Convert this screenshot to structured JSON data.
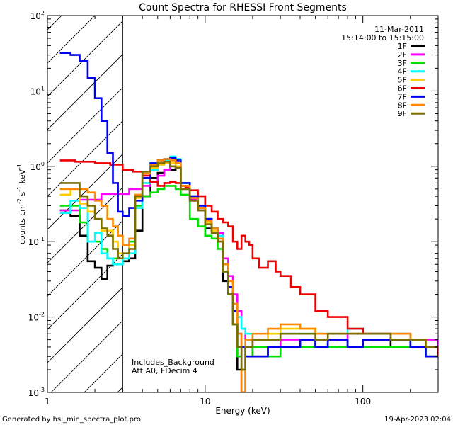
{
  "chart_data": {
    "type": "line",
    "title": "Count Spectra for RHESSI Front Segments",
    "date": "11-Mar-2011",
    "time_range": "15:14:00 to 15:15:00",
    "xlabel": "Energy (keV)",
    "ylabel": {
      "base": "counts cm",
      "exp1": "-2",
      "mid": " s",
      "exp2": "-1",
      "mid2": " keV",
      "exp3": "-1"
    },
    "xscale": "log",
    "yscale": "log",
    "xlim": [
      1,
      300
    ],
    "ylim": [
      0.001,
      100
    ],
    "x_ticks": [
      {
        "value": 1,
        "label": "1"
      },
      {
        "value": 10,
        "label": "10"
      },
      {
        "value": 100,
        "label": "100"
      }
    ],
    "y_ticks": [
      {
        "value": 0.001,
        "base": "10",
        "exp": "-3"
      },
      {
        "value": 0.01,
        "base": "10",
        "exp": "-2"
      },
      {
        "value": 0.1,
        "base": "10",
        "exp": "-1"
      },
      {
        "value": 1,
        "base": "10",
        "exp": "0"
      },
      {
        "value": 10,
        "base": "10",
        "exp": "1"
      },
      {
        "value": 100,
        "base": "10",
        "exp": "2"
      }
    ],
    "hatched_region": [
      1,
      3
    ],
    "annotations": [
      "Includes_Background",
      "Att A0, FDecim 4"
    ],
    "legend_position": "top-right",
    "series": [
      {
        "name": "1F",
        "color": "#000000",
        "x": [
          1.2,
          1.4,
          1.6,
          1.8,
          2.0,
          2.2,
          2.4,
          2.6,
          2.8,
          3.0,
          3.3,
          3.6,
          4.0,
          4.5,
          5.0,
          5.5,
          6.0,
          6.5,
          7.0,
          8.0,
          9.0,
          10,
          11,
          12,
          13,
          14,
          15,
          16,
          17,
          18,
          20,
          25,
          30,
          40,
          50,
          60,
          80,
          100,
          150,
          200,
          250,
          300
        ],
        "y": [
          0.26,
          0.22,
          0.12,
          0.055,
          0.045,
          0.032,
          0.048,
          0.05,
          0.05,
          0.055,
          0.06,
          0.14,
          0.4,
          0.7,
          0.82,
          0.88,
          0.9,
          0.95,
          0.5,
          0.35,
          0.26,
          0.15,
          0.14,
          0.1,
          0.03,
          0.02,
          0.008,
          0.002,
          0.001,
          0.004,
          0.003,
          0.004,
          0.004,
          0.005,
          0.004,
          0.005,
          0.004,
          0.005,
          0.004,
          0.004,
          0.003,
          0.003
        ]
      },
      {
        "name": "2F",
        "color": "#ff00ff",
        "x": [
          1.2,
          1.4,
          1.6,
          1.8,
          2.0,
          2.2,
          2.4,
          2.6,
          2.8,
          3.0,
          3.3,
          3.6,
          4.0,
          4.5,
          5.0,
          5.5,
          6.0,
          6.5,
          7.0,
          8.0,
          9.0,
          10,
          11,
          12,
          13,
          14,
          15,
          16,
          17,
          18,
          20,
          25,
          30,
          40,
          50,
          60,
          80,
          100,
          150,
          200,
          250,
          300
        ],
        "y": [
          0.26,
          0.26,
          0.36,
          0.36,
          0.36,
          0.43,
          0.43,
          0.43,
          0.43,
          0.43,
          0.5,
          0.5,
          0.55,
          0.62,
          0.75,
          0.9,
          1.0,
          1.0,
          0.55,
          0.37,
          0.28,
          0.2,
          0.15,
          0.13,
          0.06,
          0.035,
          0.02,
          0.012,
          0.007,
          0.005,
          0.004,
          0.004,
          0.005,
          0.005,
          0.005,
          0.005,
          0.006,
          0.006,
          0.006,
          0.005,
          0.005,
          0.004
        ]
      },
      {
        "name": "3F",
        "color": "#00e000",
        "x": [
          1.2,
          1.4,
          1.6,
          1.8,
          2.0,
          2.2,
          2.4,
          2.6,
          2.8,
          3.0,
          3.3,
          3.6,
          4.0,
          4.5,
          5.0,
          5.5,
          6.0,
          6.5,
          7.0,
          8.0,
          9.0,
          10,
          11,
          12,
          13,
          14,
          15,
          16,
          17,
          18,
          20,
          25,
          30,
          40,
          50,
          60,
          80,
          100,
          150,
          200,
          250,
          300
        ],
        "y": [
          0.3,
          0.3,
          0.18,
          0.1,
          0.1,
          0.08,
          0.06,
          0.06,
          0.06,
          0.06,
          0.1,
          0.3,
          0.4,
          0.45,
          0.5,
          0.55,
          0.55,
          0.5,
          0.42,
          0.2,
          0.16,
          0.12,
          0.11,
          0.08,
          0.04,
          0.02,
          0.008,
          0.003,
          0.002,
          0.003,
          0.004,
          0.003,
          0.004,
          0.004,
          0.004,
          0.004,
          0.004,
          0.004,
          0.004,
          0.004,
          0.003,
          0.003
        ]
      },
      {
        "name": "4F",
        "color": "#00ffff",
        "x": [
          1.2,
          1.4,
          1.6,
          1.8,
          2.0,
          2.2,
          2.4,
          2.6,
          2.8,
          3.0,
          3.3,
          3.6,
          4.0,
          4.5,
          5.0,
          5.5,
          6.0,
          6.5,
          7.0,
          8.0,
          9.0,
          10,
          11,
          12,
          13,
          14,
          15,
          16,
          17,
          18,
          20,
          25,
          30,
          40,
          50,
          60,
          80,
          100,
          150,
          200,
          250,
          300
        ],
        "y": [
          0.24,
          0.35,
          0.28,
          0.1,
          0.13,
          0.07,
          0.06,
          0.05,
          0.05,
          0.06,
          0.07,
          0.28,
          0.6,
          0.9,
          1.05,
          1.2,
          1.35,
          1.25,
          0.6,
          0.4,
          0.3,
          0.2,
          0.15,
          0.12,
          0.05,
          0.025,
          0.015,
          0.01,
          0.007,
          0.006,
          0.005,
          0.005,
          0.006,
          0.006,
          0.006,
          0.006,
          0.007,
          0.006,
          0.006,
          0.005,
          0.004,
          0.004
        ]
      },
      {
        "name": "5F",
        "color": "#ffcc00",
        "x": [
          1.2,
          1.4,
          1.6,
          1.8,
          2.0,
          2.2,
          2.4,
          2.6,
          2.8,
          3.0,
          3.3,
          3.6,
          4.0,
          4.5,
          5.0,
          5.5,
          6.0,
          6.5,
          7.0,
          8.0,
          9.0,
          10,
          11,
          12,
          13,
          14,
          15,
          16,
          17,
          18,
          20,
          25,
          30,
          40,
          50,
          60,
          80,
          100,
          150,
          200,
          250,
          300
        ],
        "y": [
          0.42,
          0.5,
          0.32,
          0.25,
          0.2,
          0.14,
          0.14,
          0.1,
          0.07,
          0.07,
          0.09,
          0.38,
          0.7,
          0.95,
          1.05,
          1.1,
          1.1,
          1.0,
          0.55,
          0.38,
          0.28,
          0.18,
          0.14,
          0.11,
          0.05,
          0.03,
          0.012,
          0.006,
          0.002,
          0.005,
          0.005,
          0.006,
          0.007,
          0.007,
          0.006,
          0.006,
          0.006,
          0.006,
          0.006,
          0.005,
          0.004,
          0.004
        ]
      },
      {
        "name": "6F",
        "color": "#ee0000",
        "x": [
          1.2,
          1.5,
          2.0,
          2.5,
          3.0,
          3.5,
          4.0,
          4.5,
          5.0,
          5.5,
          6.0,
          6.5,
          7.0,
          7.5,
          8.0,
          9.0,
          10,
          11,
          12,
          13,
          14,
          15,
          16,
          17,
          18,
          19,
          20,
          22,
          25,
          28,
          30,
          35,
          40,
          50,
          60,
          80,
          100,
          150,
          200,
          250,
          300
        ],
        "y": [
          1.2,
          1.15,
          1.1,
          1.05,
          0.9,
          0.85,
          0.75,
          0.62,
          0.55,
          0.6,
          0.62,
          0.6,
          0.55,
          0.52,
          0.48,
          0.4,
          0.3,
          0.25,
          0.2,
          0.18,
          0.16,
          0.1,
          0.08,
          0.12,
          0.1,
          0.09,
          0.06,
          0.045,
          0.055,
          0.04,
          0.035,
          0.025,
          0.02,
          0.012,
          0.01,
          0.007,
          0.006,
          0.005,
          0.004,
          0.004,
          0.003
        ]
      },
      {
        "name": "7F",
        "color": "#0000ee",
        "x": [
          1.2,
          1.4,
          1.6,
          1.8,
          2.0,
          2.2,
          2.4,
          2.6,
          2.8,
          3.0,
          3.3,
          3.6,
          4.0,
          4.5,
          5.0,
          5.5,
          6.0,
          6.5,
          7.0,
          8.0,
          9.0,
          10,
          11,
          12,
          13,
          14,
          15,
          16,
          17,
          18,
          20,
          25,
          30,
          40,
          50,
          60,
          80,
          100,
          150,
          200,
          250,
          300
        ],
        "y": [
          32,
          30,
          25,
          15,
          8,
          4,
          1.5,
          0.6,
          0.25,
          0.22,
          0.28,
          0.35,
          0.7,
          1.1,
          1.2,
          1.25,
          1.3,
          1.2,
          0.6,
          0.4,
          0.3,
          0.2,
          0.15,
          0.11,
          0.05,
          0.025,
          0.012,
          0.006,
          0.004,
          0.003,
          0.003,
          0.004,
          0.004,
          0.005,
          0.004,
          0.005,
          0.004,
          0.005,
          0.005,
          0.004,
          0.003,
          0.003
        ]
      },
      {
        "name": "8F",
        "color": "#ff8800",
        "x": [
          1.2,
          1.4,
          1.6,
          1.8,
          2.0,
          2.2,
          2.4,
          2.6,
          2.8,
          3.0,
          3.3,
          3.6,
          4.0,
          4.5,
          5.0,
          5.5,
          6.0,
          6.5,
          7.0,
          8.0,
          9.0,
          10,
          11,
          12,
          13,
          14,
          15,
          16,
          17,
          18,
          20,
          25,
          30,
          40,
          50,
          60,
          80,
          100,
          150,
          200,
          250,
          300
        ],
        "y": [
          0.5,
          0.5,
          0.5,
          0.45,
          0.35,
          0.3,
          0.2,
          0.16,
          0.12,
          0.09,
          0.11,
          0.42,
          0.8,
          1.05,
          1.2,
          1.25,
          1.2,
          1.1,
          0.55,
          0.38,
          0.28,
          0.19,
          0.15,
          0.11,
          0.05,
          0.03,
          0.015,
          0.006,
          0.001,
          0.005,
          0.006,
          0.007,
          0.008,
          0.007,
          0.006,
          0.006,
          0.006,
          0.006,
          0.006,
          0.005,
          0.004,
          0.004
        ]
      },
      {
        "name": "9F",
        "color": "#7a6e00",
        "x": [
          1.2,
          1.4,
          1.6,
          1.8,
          2.0,
          2.2,
          2.4,
          2.6,
          2.8,
          3.0,
          3.3,
          3.6,
          4.0,
          4.5,
          5.0,
          5.5,
          6.0,
          6.5,
          7.0,
          8.0,
          9.0,
          10,
          11,
          12,
          13,
          14,
          15,
          16,
          17,
          18,
          20,
          25,
          30,
          40,
          50,
          60,
          80,
          100,
          150,
          200,
          250,
          300
        ],
        "y": [
          0.6,
          0.6,
          0.4,
          0.3,
          0.2,
          0.15,
          0.12,
          0.08,
          0.06,
          0.07,
          0.08,
          0.4,
          0.85,
          1.0,
          1.1,
          1.15,
          1.0,
          0.95,
          0.5,
          0.35,
          0.26,
          0.17,
          0.13,
          0.1,
          0.04,
          0.02,
          0.008,
          0.004,
          0.002,
          0.004,
          0.005,
          0.005,
          0.006,
          0.006,
          0.005,
          0.006,
          0.006,
          0.006,
          0.005,
          0.005,
          0.004,
          0.004
        ]
      }
    ]
  },
  "footer": {
    "left": "Generated by hsi_min_spectra_plot.pro",
    "right": "19-Apr-2023 02:04"
  }
}
